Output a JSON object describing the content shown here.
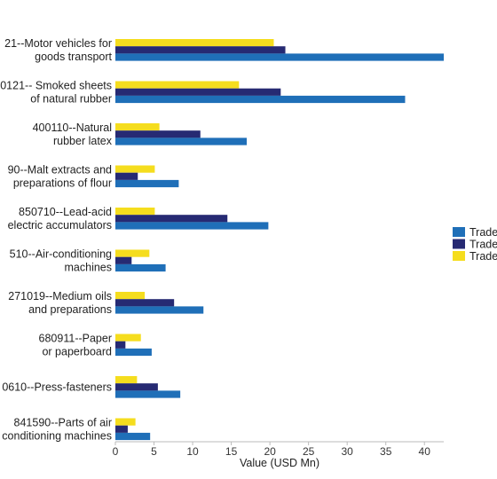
{
  "chart_data": {
    "type": "bar",
    "orientation": "horizontal",
    "categories": [
      [
        "21--Motor vehicles for",
        "goods transport"
      ],
      [
        "0121-- Smoked sheets",
        "of natural rubber"
      ],
      [
        "400110--Natural",
        "rubber latex"
      ],
      [
        "90--Malt extracts and",
        "preparations of flour"
      ],
      [
        "850710--Lead-acid",
        "electric accumulators"
      ],
      [
        "510--Air-conditioning",
        "machines"
      ],
      [
        "271019--Medium oils",
        "and preparations"
      ],
      [
        "680911--Paper",
        "or paperboard"
      ],
      [
        "0610--Press-fasteners"
      ],
      [
        "841590--Parts of air",
        "conditioning machines"
      ]
    ],
    "series": [
      {
        "name": "Trade",
        "color": "#F5DD1E",
        "values": [
          20.5,
          16,
          5.7,
          5.1,
          5.1,
          4.4,
          3.8,
          3.3,
          2.8,
          2.6
        ]
      },
      {
        "name": "Trade",
        "color": "#262A73",
        "values": [
          22,
          21.4,
          11,
          2.9,
          14.5,
          2.1,
          7.6,
          1.3,
          5.5,
          1.6
        ]
      },
      {
        "name": "Trade",
        "color": "#1F6FB8",
        "values": [
          42.5,
          37.5,
          17,
          8.2,
          19.8,
          6.5,
          11.4,
          4.7,
          8.4,
          4.5
        ]
      }
    ],
    "xlabel": "Value (USD Mn)",
    "xlim": [
      0,
      42.5
    ],
    "xticks": [
      0,
      5,
      10,
      15,
      20,
      25,
      30,
      35,
      40
    ],
    "grid": false,
    "legend_placement": "right"
  },
  "legend": {
    "items": [
      {
        "label": "Trade",
        "color": "#1F6FB8"
      },
      {
        "label": "Trade",
        "color": "#262A73"
      },
      {
        "label": "Trade",
        "color": "#F5DD1E"
      }
    ]
  }
}
